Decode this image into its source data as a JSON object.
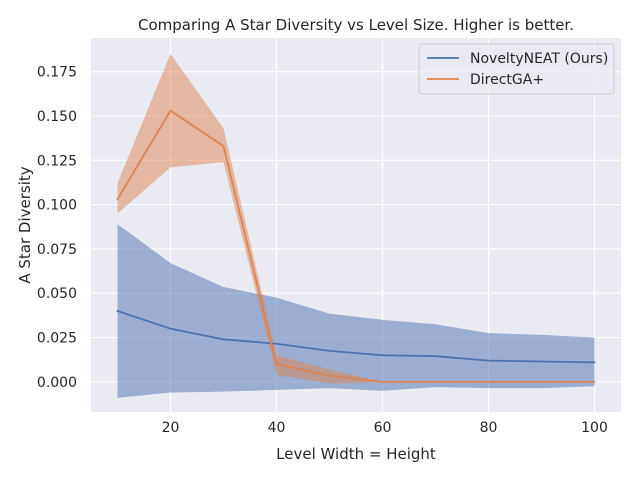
{
  "chart_data": {
    "type": "line",
    "title": "Comparing A Star Diversity  vs Level Size. Higher is better.",
    "xlabel": "Level Width = Height",
    "ylabel": "A Star Diversity",
    "xlim": [
      5,
      105
    ],
    "ylim": [
      -0.017,
      0.194
    ],
    "xticks": [
      20,
      40,
      60,
      80,
      100
    ],
    "yticks": [
      0.0,
      0.025,
      0.05,
      0.075,
      0.1,
      0.125,
      0.15,
      0.175
    ],
    "ytick_labels": [
      "0.000",
      "0.025",
      "0.050",
      "0.075",
      "0.100",
      "0.125",
      "0.150",
      "0.175"
    ],
    "grid": true,
    "legend_position": "upper-right",
    "x": [
      10,
      20,
      30,
      40,
      50,
      60,
      70,
      80,
      90,
      100
    ],
    "series": [
      {
        "name": "NoveltyNEAT (Ours)",
        "color": "#4c72b0",
        "values": [
          0.04,
          0.03,
          0.024,
          0.0215,
          0.0175,
          0.015,
          0.0145,
          0.012,
          0.0115,
          0.011
        ],
        "lower": [
          -0.009,
          -0.006,
          -0.0055,
          -0.0045,
          -0.0035,
          -0.005,
          -0.003,
          -0.0035,
          -0.0035,
          -0.0025
        ],
        "upper": [
          0.089,
          0.067,
          0.0535,
          0.0475,
          0.0385,
          0.035,
          0.0325,
          0.0275,
          0.0265,
          0.025
        ]
      },
      {
        "name": "DirectGA+",
        "color": "#dd8452",
        "x": [
          10,
          20,
          30,
          40,
          50,
          60,
          70,
          80,
          90,
          100
        ],
        "values": [
          0.103,
          0.153,
          0.133,
          0.01,
          0.0035,
          0.0,
          0.0,
          0.0,
          0.0,
          0.0
        ],
        "lower": [
          0.095,
          0.121,
          0.124,
          0.004,
          -0.001,
          0.0,
          0.0,
          0.0,
          0.0,
          0.0
        ],
        "upper": [
          0.112,
          0.185,
          0.143,
          0.015,
          0.007,
          0.0,
          0.0,
          0.0,
          0.0,
          0.0
        ]
      }
    ]
  }
}
